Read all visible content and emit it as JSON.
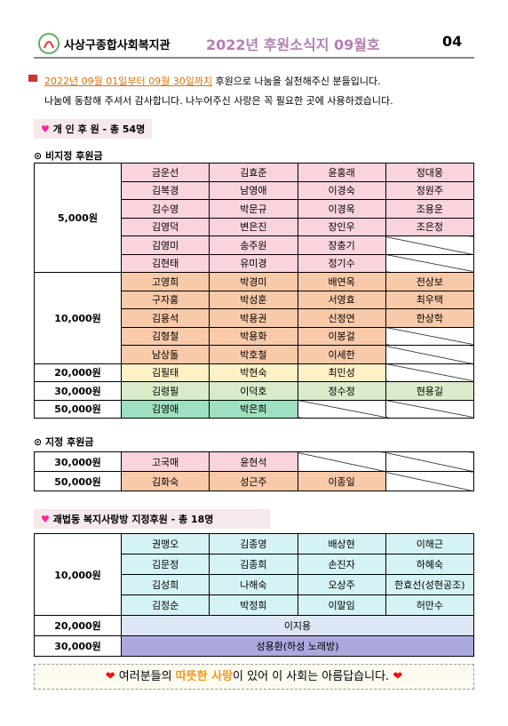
{
  "header": {
    "org": "사상구종합사회복지관",
    "title": "2022년 후원소식지 09월호",
    "page": "04"
  },
  "intro": {
    "period": "2022년 09월 01일부터 09월 30일까지",
    "line1": " 후원으로 나눔을 실천해주신 분들입니다.",
    "line2": "나눔에 동참해 주셔서 감사합니다. 나누어주신 사랑은 꼭 필요한 곳에 사용하겠습니다."
  },
  "section1": {
    "title": "개 인 후 원 - 총 54명",
    "table1": {
      "title": "비지정 후원금",
      "groups": [
        {
          "amount": "5,000원",
          "color": "#fad4dd",
          "rows": [
            [
              "금운선",
              "김효준",
              "윤홍래",
              "정대웅"
            ],
            [
              "김복경",
              "남영애",
              "이경숙",
              "정원주"
            ],
            [
              "김수영",
              "박문규",
              "이경옥",
              "조용운"
            ],
            [
              "김영덕",
              "변은진",
              "장인우",
              "조은정"
            ],
            [
              "김영미",
              "송주원",
              "장충기"
            ],
            [
              "김현태",
              "유미경",
              "정기수"
            ]
          ]
        },
        {
          "amount": "10,000원",
          "color": "#f9caa9",
          "rows": [
            [
              "고영희",
              "박경미",
              "배연옥",
              "전상보"
            ],
            [
              "구자홍",
              "박성훈",
              "서영효",
              "최우택"
            ],
            [
              "김용석",
              "박용권",
              "신정연",
              "한상학"
            ],
            [
              "김형철",
              "박용화",
              "이봉걸"
            ],
            [
              "남상돌",
              "박호철",
              "이세한"
            ]
          ]
        },
        {
          "amount": "20,000원",
          "color": "#fdf1c5",
          "rows": [
            [
              "김필태",
              "박현숙",
              "최민성"
            ]
          ]
        },
        {
          "amount": "30,000원",
          "color": "#d9ebc8",
          "rows": [
            [
              "김령필",
              "이덕호",
              "정수정",
              "현용길"
            ]
          ]
        },
        {
          "amount": "50,000원",
          "color": "#9fe0c1",
          "rows": [
            [
              "김영애",
              "박은희"
            ]
          ]
        }
      ]
    },
    "table2": {
      "title": "지정 후원금",
      "groups": [
        {
          "amount": "30,000원",
          "color": "#fad4dd",
          "rows": [
            [
              "고국매",
              "윤현석"
            ]
          ]
        },
        {
          "amount": "50,000원",
          "color": "#f9caa9",
          "rows": [
            [
              "김화숙",
              "성근주",
              "이종일"
            ]
          ]
        }
      ]
    }
  },
  "section2": {
    "title": "괘법동 복지사랑방 지정후원 - 총 18명",
    "table3": {
      "groups": [
        {
          "amount": "10,000원",
          "color": "#d5f2f4",
          "rows": [
            [
              "권맹오",
              "김종영",
              "배상현",
              "이해근"
            ],
            [
              "김문정",
              "김종희",
              "손진자",
              "하혜숙"
            ],
            [
              "김성희",
              "나해숙",
              "오상주",
              "한효선(성현공조)"
            ],
            [
              "김정순",
              "박정희",
              "이말임",
              "허만수"
            ]
          ]
        },
        {
          "amount": "20,000원",
          "color": "#dee7f6",
          "span": true,
          "rows": [
            [
              "이지용"
            ]
          ]
        },
        {
          "amount": "30,000원",
          "color": "#aaa8dd",
          "span": true,
          "rows": [
            [
              "성용환(하성 노래방)"
            ]
          ]
        }
      ]
    }
  },
  "footer": {
    "before": "여러분들의 ",
    "highlight": "따뜻한 사랑",
    "after": "이 있어 이 사회는 아름답습니다."
  }
}
